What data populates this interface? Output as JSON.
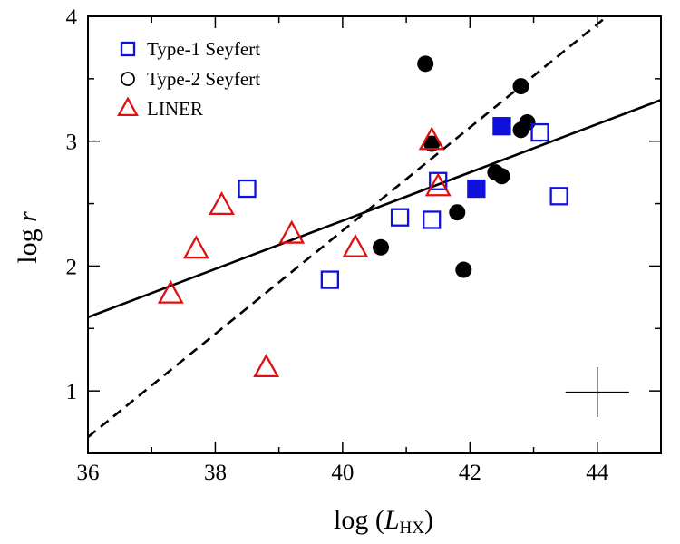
{
  "chart_data": {
    "type": "scatter",
    "title": "",
    "xlabel": {
      "prefix": "log (",
      "var": "L",
      "sub": "HX",
      "suffix": ")"
    },
    "ylabel": {
      "prefix": "log ",
      "var": "r"
    },
    "xlim": [
      36,
      45
    ],
    "ylim": [
      0.5,
      4
    ],
    "xticks": [
      36,
      38,
      40,
      42,
      44
    ],
    "yticks": [
      1,
      2,
      3,
      4
    ],
    "xtick_labels": [
      "36",
      "38",
      "40",
      "42",
      "44"
    ],
    "ytick_labels": [
      "1",
      "2",
      "3",
      "4"
    ],
    "legend_position": "top-left",
    "series": [
      {
        "name": "Type-1 Seyfert",
        "marker": "square",
        "color": "#1010dd",
        "points": [
          {
            "x": 38.5,
            "y": 2.62,
            "filled": false
          },
          {
            "x": 39.8,
            "y": 1.89,
            "filled": false
          },
          {
            "x": 40.9,
            "y": 2.39,
            "filled": false
          },
          {
            "x": 41.4,
            "y": 2.37,
            "filled": false
          },
          {
            "x": 41.5,
            "y": 2.68,
            "filled": false
          },
          {
            "x": 42.1,
            "y": 2.62,
            "filled": true
          },
          {
            "x": 42.5,
            "y": 3.12,
            "filled": true
          },
          {
            "x": 43.1,
            "y": 3.07,
            "filled": false
          },
          {
            "x": 43.4,
            "y": 2.56,
            "filled": false
          }
        ]
      },
      {
        "name": "Type-2 Seyfert",
        "marker": "circle",
        "color": "#000000",
        "points": [
          {
            "x": 40.6,
            "y": 2.15,
            "filled": true
          },
          {
            "x": 41.3,
            "y": 3.62,
            "filled": true
          },
          {
            "x": 41.4,
            "y": 2.98,
            "filled": true
          },
          {
            "x": 41.8,
            "y": 2.43,
            "filled": true
          },
          {
            "x": 41.9,
            "y": 1.97,
            "filled": true
          },
          {
            "x": 42.4,
            "y": 2.75,
            "filled": true
          },
          {
            "x": 42.5,
            "y": 2.72,
            "filled": true
          },
          {
            "x": 42.8,
            "y": 3.44,
            "filled": true
          },
          {
            "x": 42.8,
            "y": 3.09,
            "filled": true
          },
          {
            "x": 42.9,
            "y": 3.15,
            "filled": true
          }
        ]
      },
      {
        "name": "LINER",
        "marker": "triangle",
        "color": "#e01010",
        "points": [
          {
            "x": 37.3,
            "y": 1.77,
            "filled": false
          },
          {
            "x": 37.7,
            "y": 2.13,
            "filled": false
          },
          {
            "x": 38.1,
            "y": 2.48,
            "filled": false
          },
          {
            "x": 38.8,
            "y": 1.18,
            "filled": false
          },
          {
            "x": 39.2,
            "y": 2.25,
            "filled": false
          },
          {
            "x": 40.2,
            "y": 2.14,
            "filled": false
          },
          {
            "x": 41.4,
            "y": 3.0,
            "filled": false
          },
          {
            "x": 41.5,
            "y": 2.63,
            "filled": false
          }
        ]
      }
    ],
    "fit_lines": [
      {
        "name": "solid-fit",
        "style": "solid",
        "x": [
          36,
          45
        ],
        "y": [
          1.59,
          3.33
        ]
      },
      {
        "name": "dashed-fit",
        "style": "dashed",
        "x": [
          36,
          45
        ],
        "y": [
          0.63,
          4.35
        ]
      }
    ],
    "error_bar": {
      "x": 44,
      "y": 0.99,
      "xerr": 0.5,
      "yerr": 0.2
    }
  }
}
